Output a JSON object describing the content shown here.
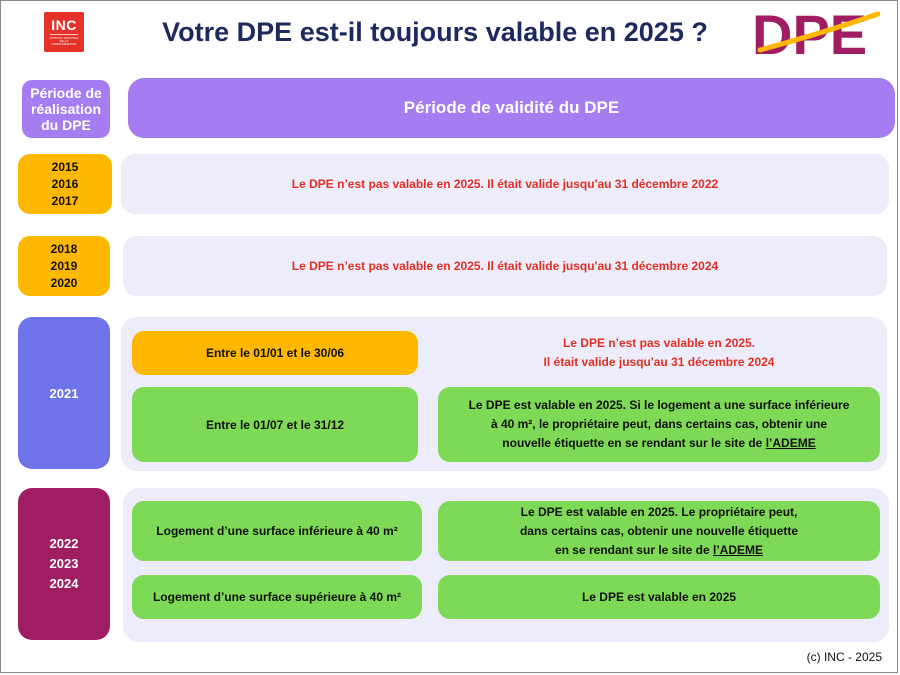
{
  "header": {
    "inc_logo": {
      "word": "INC",
      "subtitle": "INSTITUT NATIONAL DE LA CONSOMMATION",
      "color": "#e4322b"
    },
    "title": "Votre DPE est-il toujours valable en 2025 ?",
    "dpe_logo": {
      "text": "DPE",
      "colors": [
        "#a11d63",
        "#ffb800"
      ]
    }
  },
  "table_header": {
    "left": [
      "Période de",
      "réalisation",
      "du DPE"
    ],
    "right": "Période de validité du DPE"
  },
  "rows": [
    {
      "years": [
        "2015",
        "2016",
        "2017"
      ],
      "result": "Le DPE n’est pas valable en 2025. Il était valide jusqu'au 31 décembre 2022"
    },
    {
      "years": [
        "2018",
        "2019",
        "2020"
      ],
      "result": "Le DPE n’est pas valable en 2025. Il était valide jusqu'au 31 décembre 2024"
    },
    {
      "years": [
        "2021"
      ],
      "cases": [
        {
          "condition": "Entre le 01/01 et le 30/06",
          "result_lines": [
            "Le DPE n’est pas valable en 2025.",
            "Il était valide jusqu'au 31 décembre 2024"
          ]
        },
        {
          "condition": "Entre le 01/07 et le 31/12",
          "result_lines": [
            "Le DPE est valable en 2025. Si le logement a une surface inférieure",
            "à 40 m², le propriétaire peut, dans certains cas, obtenir une",
            "nouvelle étiquette en se rendant sur le site de "
          ],
          "link": "l’ADEME"
        }
      ]
    },
    {
      "years": [
        "2022",
        "2023",
        "2024"
      ],
      "cases": [
        {
          "condition": "Logement d’une surface inférieure à 40 m²",
          "result_lines": [
            "Le DPE est valable en 2025. Le propriétaire peut,",
            "dans certains cas, obtenir une nouvelle étiquette",
            "en se rendant sur le site de "
          ],
          "link": "l’ADEME"
        },
        {
          "condition": "Logement d’une surface supérieure à 40 m²",
          "result": "Le DPE est valable en 2025"
        }
      ]
    }
  ],
  "footer": {
    "copyright": "(c) INC - 2025"
  },
  "colors": {
    "purple": "#a57df0",
    "lavender": "#ececfa",
    "orange": "#ffb800",
    "green": "#7ed957",
    "indigo": "#6f73ea",
    "plum": "#a11d63",
    "red_text": "#e03024",
    "title": "#1e2a5e"
  }
}
